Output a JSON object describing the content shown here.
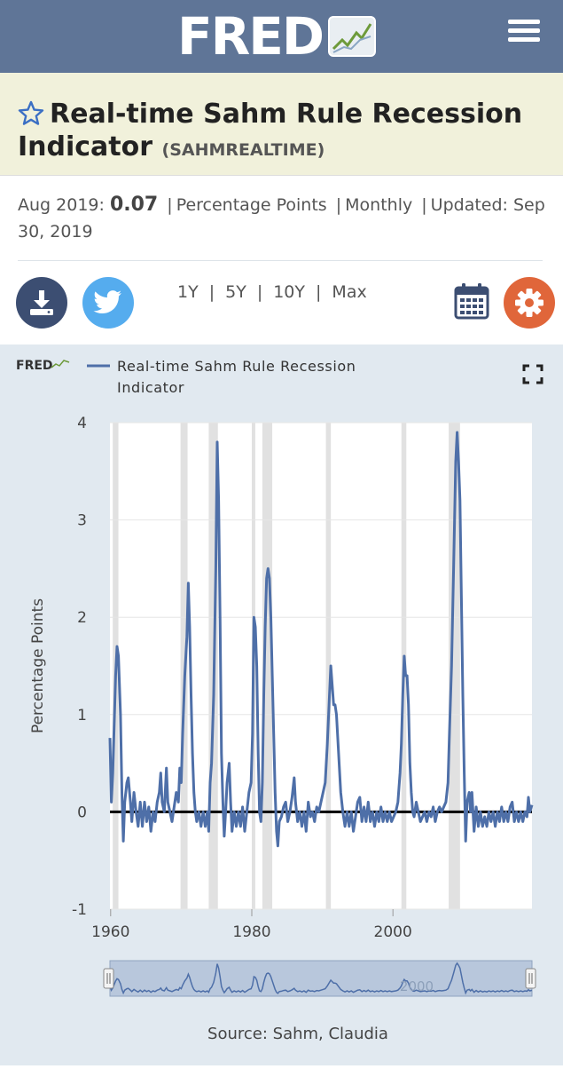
{
  "header": {
    "logo": "FRED",
    "menu_icon": "hamburger-menu-icon"
  },
  "series": {
    "title": "Real-time Sahm Rule Recession Indicator",
    "id": "(SAHMREALTIME)"
  },
  "meta": {
    "date_label": "Aug 2019:",
    "value": "0.07",
    "units": "Percentage Points",
    "frequency": "Monthly",
    "updated_label": "Updated:",
    "updated_date": "Sep 30, 2019"
  },
  "toolbar": {
    "download_icon": "download-icon",
    "twitter_icon": "twitter-icon",
    "ranges": [
      "1Y",
      "5Y",
      "10Y",
      "Max"
    ],
    "calendar_icon": "calendar-icon",
    "settings_icon": "gear-icon",
    "colors": {
      "download": "#3c4e72",
      "twitter": "#55acee",
      "settings": "#e0663a"
    }
  },
  "chart_meta": {
    "brand": "FRED",
    "legend_line1": "Real-time Sahm Rule Recession",
    "legend_line2": "Indicator",
    "source": "Source: Sahm, Claudia",
    "navigator_label": "2000",
    "fullscreen_icon": "fullscreen-icon"
  },
  "chart_data": {
    "type": "line",
    "ylabel": "Percentage Points",
    "ylim": [
      -1,
      4
    ],
    "yticks": [
      "4",
      "3",
      "2",
      "1",
      "0",
      "-1"
    ],
    "xticks": [
      "1960",
      "1980",
      "2000"
    ],
    "xlim": [
      1959.9,
      2019.7
    ],
    "grid": true,
    "line_color": "#4e6fa8",
    "recessions": [
      [
        1960.3,
        1961.1
      ],
      [
        1969.9,
        1970.9
      ],
      [
        1973.9,
        1975.2
      ],
      [
        1980.0,
        1980.5
      ],
      [
        1981.5,
        1982.9
      ],
      [
        1990.5,
        1991.2
      ],
      [
        2001.2,
        2001.9
      ],
      [
        2007.9,
        2009.5
      ]
    ],
    "series": [
      {
        "name": "Real-time Sahm Rule Recession Indicator",
        "points": [
          [
            1959.9,
            0.76
          ],
          [
            1960.1,
            0.1
          ],
          [
            1960.3,
            0.4
          ],
          [
            1960.5,
            0.9
          ],
          [
            1960.7,
            1.4
          ],
          [
            1960.9,
            1.7
          ],
          [
            1961.1,
            1.6
          ],
          [
            1961.4,
            1.0
          ],
          [
            1961.6,
            0.2
          ],
          [
            1961.8,
            -0.3
          ],
          [
            1962.0,
            0.1
          ],
          [
            1962.3,
            0.3
          ],
          [
            1962.5,
            0.35
          ],
          [
            1962.8,
            0.1
          ],
          [
            1963.0,
            -0.1
          ],
          [
            1963.3,
            0.2
          ],
          [
            1963.6,
            0.0
          ],
          [
            1963.9,
            -0.15
          ],
          [
            1964.2,
            0.1
          ],
          [
            1964.5,
            -0.15
          ],
          [
            1964.8,
            0.1
          ],
          [
            1965.1,
            -0.1
          ],
          [
            1965.4,
            0.05
          ],
          [
            1965.7,
            -0.2
          ],
          [
            1966.0,
            0.0
          ],
          [
            1966.3,
            -0.1
          ],
          [
            1966.6,
            0.1
          ],
          [
            1966.9,
            0.2
          ],
          [
            1967.1,
            0.4
          ],
          [
            1967.3,
            0.1
          ],
          [
            1967.6,
            0.0
          ],
          [
            1967.9,
            0.45
          ],
          [
            1968.1,
            0.1
          ],
          [
            1968.4,
            0.0
          ],
          [
            1968.7,
            -0.1
          ],
          [
            1969.0,
            0.05
          ],
          [
            1969.3,
            0.2
          ],
          [
            1969.6,
            0.1
          ],
          [
            1969.8,
            0.45
          ],
          [
            1970.0,
            0.3
          ],
          [
            1970.2,
            0.8
          ],
          [
            1970.5,
            1.4
          ],
          [
            1970.8,
            1.8
          ],
          [
            1971.0,
            2.35
          ],
          [
            1971.2,
            1.9
          ],
          [
            1971.4,
            1.2
          ],
          [
            1971.6,
            0.6
          ],
          [
            1971.8,
            0.2
          ],
          [
            1972.0,
            0.0
          ],
          [
            1972.2,
            -0.1
          ],
          [
            1972.5,
            0.0
          ],
          [
            1972.8,
            -0.15
          ],
          [
            1973.1,
            0.0
          ],
          [
            1973.4,
            -0.15
          ],
          [
            1973.7,
            0.0
          ],
          [
            1973.9,
            -0.2
          ],
          [
            1974.1,
            0.3
          ],
          [
            1974.3,
            0.5
          ],
          [
            1974.6,
            1.2
          ],
          [
            1974.9,
            2.5
          ],
          [
            1975.1,
            3.8
          ],
          [
            1975.3,
            3.2
          ],
          [
            1975.5,
            2.0
          ],
          [
            1975.7,
            0.6
          ],
          [
            1975.9,
            0.1
          ],
          [
            1976.1,
            -0.25
          ],
          [
            1976.3,
            0.0
          ],
          [
            1976.5,
            0.3
          ],
          [
            1976.8,
            0.5
          ],
          [
            1977.0,
            0.1
          ],
          [
            1977.2,
            -0.2
          ],
          [
            1977.5,
            0.0
          ],
          [
            1977.8,
            -0.15
          ],
          [
            1978.1,
            0.0
          ],
          [
            1978.4,
            -0.15
          ],
          [
            1978.7,
            0.05
          ],
          [
            1979.0,
            -0.2
          ],
          [
            1979.3,
            0.0
          ],
          [
            1979.6,
            0.2
          ],
          [
            1979.9,
            0.3
          ],
          [
            1980.1,
            0.8
          ],
          [
            1980.3,
            2.0
          ],
          [
            1980.5,
            1.9
          ],
          [
            1980.7,
            1.5
          ],
          [
            1980.9,
            0.6
          ],
          [
            1981.1,
            0.0
          ],
          [
            1981.3,
            -0.1
          ],
          [
            1981.5,
            0.3
          ],
          [
            1981.7,
            1.2
          ],
          [
            1981.9,
            1.9
          ],
          [
            1982.1,
            2.4
          ],
          [
            1982.3,
            2.5
          ],
          [
            1982.5,
            2.4
          ],
          [
            1982.7,
            2.0
          ],
          [
            1982.9,
            1.4
          ],
          [
            1983.1,
            0.8
          ],
          [
            1983.3,
            0.2
          ],
          [
            1983.5,
            -0.2
          ],
          [
            1983.7,
            -0.35
          ],
          [
            1983.9,
            -0.1
          ],
          [
            1984.2,
            -0.05
          ],
          [
            1984.5,
            0.05
          ],
          [
            1984.8,
            0.1
          ],
          [
            1985.1,
            -0.1
          ],
          [
            1985.4,
            0.0
          ],
          [
            1985.7,
            0.15
          ],
          [
            1986.0,
            0.35
          ],
          [
            1986.2,
            0.1
          ],
          [
            1986.5,
            -0.1
          ],
          [
            1986.8,
            0.0
          ],
          [
            1987.1,
            -0.15
          ],
          [
            1987.4,
            0.0
          ],
          [
            1987.7,
            -0.2
          ],
          [
            1988.0,
            0.1
          ],
          [
            1988.3,
            -0.05
          ],
          [
            1988.6,
            0.0
          ],
          [
            1988.9,
            -0.1
          ],
          [
            1989.2,
            0.05
          ],
          [
            1989.5,
            0.0
          ],
          [
            1989.8,
            0.1
          ],
          [
            1990.1,
            0.2
          ],
          [
            1990.4,
            0.3
          ],
          [
            1990.7,
            0.7
          ],
          [
            1991.0,
            1.2
          ],
          [
            1991.2,
            1.5
          ],
          [
            1991.4,
            1.3
          ],
          [
            1991.6,
            1.1
          ],
          [
            1991.8,
            1.1
          ],
          [
            1992.0,
            1.0
          ],
          [
            1992.3,
            0.6
          ],
          [
            1992.6,
            0.2
          ],
          [
            1992.9,
            0.0
          ],
          [
            1993.2,
            -0.15
          ],
          [
            1993.5,
            0.0
          ],
          [
            1993.8,
            -0.15
          ],
          [
            1994.1,
            0.0
          ],
          [
            1994.4,
            -0.2
          ],
          [
            1994.7,
            -0.05
          ],
          [
            1995.0,
            0.1
          ],
          [
            1995.3,
            0.15
          ],
          [
            1995.6,
            -0.1
          ],
          [
            1995.9,
            0.05
          ],
          [
            1996.2,
            -0.1
          ],
          [
            1996.5,
            0.1
          ],
          [
            1996.8,
            -0.1
          ],
          [
            1997.1,
            0.0
          ],
          [
            1997.4,
            -0.15
          ],
          [
            1997.7,
            0.0
          ],
          [
            1998.0,
            -0.1
          ],
          [
            1998.3,
            0.05
          ],
          [
            1998.6,
            -0.1
          ],
          [
            1998.9,
            0.0
          ],
          [
            1999.2,
            -0.1
          ],
          [
            1999.5,
            0.0
          ],
          [
            1999.8,
            -0.1
          ],
          [
            2000.1,
            -0.05
          ],
          [
            2000.4,
            0.0
          ],
          [
            2000.7,
            0.1
          ],
          [
            2001.0,
            0.4
          ],
          [
            2001.2,
            0.7
          ],
          [
            2001.4,
            1.2
          ],
          [
            2001.6,
            1.6
          ],
          [
            2001.8,
            1.4
          ],
          [
            2002.0,
            1.4
          ],
          [
            2002.2,
            1.1
          ],
          [
            2002.4,
            0.5
          ],
          [
            2002.6,
            0.2
          ],
          [
            2002.8,
            0.0
          ],
          [
            2003.0,
            -0.05
          ],
          [
            2003.3,
            0.1
          ],
          [
            2003.6,
            0.0
          ],
          [
            2003.9,
            -0.1
          ],
          [
            2004.2,
            -0.05
          ],
          [
            2004.5,
            0.0
          ],
          [
            2004.8,
            -0.1
          ],
          [
            2005.1,
            0.0
          ],
          [
            2005.4,
            -0.05
          ],
          [
            2005.7,
            0.05
          ],
          [
            2006.0,
            -0.1
          ],
          [
            2006.3,
            0.0
          ],
          [
            2006.6,
            0.05
          ],
          [
            2006.9,
            0.0
          ],
          [
            2007.2,
            0.05
          ],
          [
            2007.5,
            0.1
          ],
          [
            2007.8,
            0.3
          ],
          [
            2008.0,
            0.8
          ],
          [
            2008.3,
            1.5
          ],
          [
            2008.6,
            2.5
          ],
          [
            2008.9,
            3.6
          ],
          [
            2009.1,
            3.9
          ],
          [
            2009.3,
            3.6
          ],
          [
            2009.5,
            3.2
          ],
          [
            2009.7,
            2.2
          ],
          [
            2009.9,
            1.2
          ],
          [
            2010.1,
            0.4
          ],
          [
            2010.3,
            -0.3
          ],
          [
            2010.5,
            0.1
          ],
          [
            2010.8,
            0.2
          ],
          [
            2011.0,
            0.0
          ],
          [
            2011.2,
            0.2
          ],
          [
            2011.5,
            -0.2
          ],
          [
            2011.8,
            0.05
          ],
          [
            2012.1,
            -0.15
          ],
          [
            2012.4,
            0.0
          ],
          [
            2012.7,
            -0.15
          ],
          [
            2013.0,
            -0.05
          ],
          [
            2013.3,
            -0.15
          ],
          [
            2013.6,
            0.0
          ],
          [
            2013.9,
            -0.1
          ],
          [
            2014.2,
            0.0
          ],
          [
            2014.5,
            -0.15
          ],
          [
            2014.8,
            0.0
          ],
          [
            2015.1,
            -0.1
          ],
          [
            2015.4,
            0.05
          ],
          [
            2015.7,
            -0.1
          ],
          [
            2016.0,
            0.0
          ],
          [
            2016.3,
            -0.1
          ],
          [
            2016.6,
            0.05
          ],
          [
            2016.9,
            0.1
          ],
          [
            2017.2,
            -0.1
          ],
          [
            2017.5,
            0.0
          ],
          [
            2017.8,
            -0.1
          ],
          [
            2018.1,
            0.0
          ],
          [
            2018.4,
            -0.1
          ],
          [
            2018.7,
            0.0
          ],
          [
            2019.0,
            -0.05
          ],
          [
            2019.2,
            0.15
          ],
          [
            2019.4,
            0.0
          ],
          [
            2019.7,
            0.07
          ]
        ]
      }
    ]
  }
}
